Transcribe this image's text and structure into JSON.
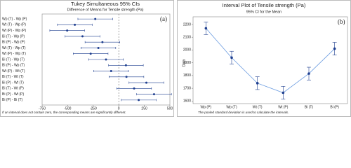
{
  "chart_data": [
    {
      "type": "errorbar_h",
      "title": "Tukey Simultaneous 95% CIs",
      "subtitle": "Difference of Means for Tensile strength (Pa)",
      "panel_label": "(a)",
      "categories": [
        "Wp (T) - Wp (P)",
        "Wt (T) - Wp (P)",
        "Wt (P) - Wp (P)",
        "Bi (T) - Wp (P)",
        "Bi (P) - Wp (P)",
        "Wt (T) - Wp (T)",
        "Wt (P) - Wp (T)",
        "Bi (T) - Wp (T)",
        "Bi (P) - Wp (T)",
        "Wt (P) - Wt (T)",
        "Bi (T) - Wt (T)",
        "Bi (P) - Wt (T)",
        "Bi (T) - Wt (P)",
        "Bi (P) - Wt (P)",
        "Bi (P) - Bi (T)"
      ],
      "values": [
        -230,
        -430,
        -505,
        -355,
        -160,
        -200,
        -275,
        -125,
        70,
        -75,
        75,
        270,
        150,
        345,
        195
      ],
      "errors": [
        170,
        170,
        170,
        170,
        170,
        170,
        170,
        170,
        170,
        170,
        170,
        170,
        170,
        170,
        170
      ],
      "color": "#1f3f8f",
      "reference_line": 0,
      "xlim": [
        -750,
        500
      ],
      "xticks": [
        -750,
        -500,
        -250,
        0,
        250,
        500
      ],
      "footnote": "If an interval does not contain zero, the corresponding means are significantly different."
    },
    {
      "type": "interval",
      "title": "Interval Plot of Tensile strength (Pa)",
      "subtitle": "95% CI for the Mean",
      "panel_label": "(b)",
      "ylabel": "Data",
      "categories": [
        "Wp (P)",
        "Wp (T)",
        "Wt (T)",
        "Wt (P)",
        "Bi (T)",
        "Bi (P)"
      ],
      "values": [
        2170,
        1940,
        1740,
        1665,
        1815,
        2010
      ],
      "errors": [
        50,
        50,
        50,
        50,
        50,
        50
      ],
      "color": "#1f3f8f",
      "line_color": "#6a9be0",
      "ylim": [
        1580,
        2260
      ],
      "yticks": [
        1600,
        1700,
        1800,
        1900,
        2000,
        2100,
        2200
      ],
      "footnote": "The pooled standard deviation is used to calculate the intervals."
    }
  ]
}
